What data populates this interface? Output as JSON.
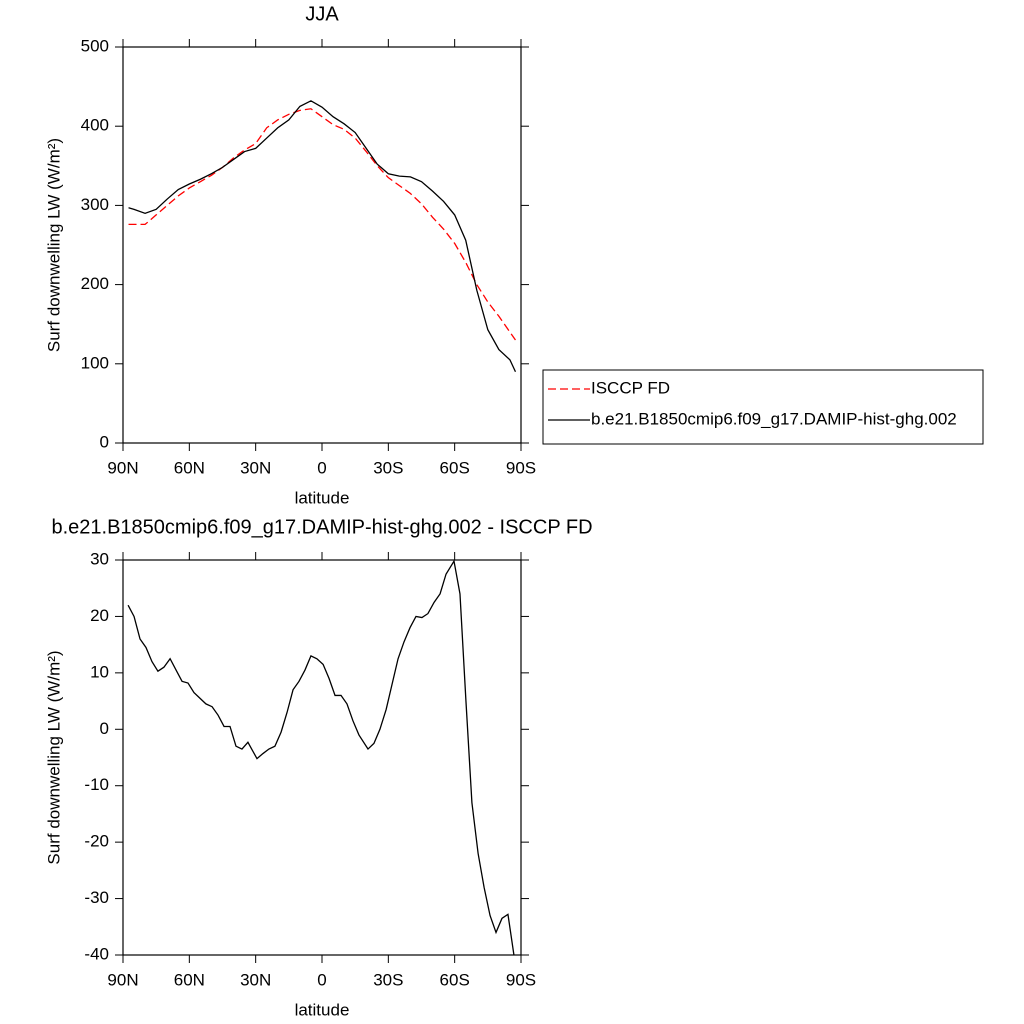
{
  "chart_data": [
    {
      "type": "line",
      "title": "JJA",
      "xlabel": "latitude",
      "ylabel": "Surf downwelling LW (W/m²)",
      "x": [
        87.5,
        85,
        80,
        75,
        70,
        65,
        60,
        55,
        50,
        45,
        40,
        35,
        30,
        25,
        20,
        15,
        10,
        5,
        0,
        -5,
        -10,
        -15,
        -20,
        -25,
        -30,
        -35,
        -40,
        -45,
        -50,
        -55,
        -60,
        -65,
        -70,
        -75,
        -80,
        -85,
        -87.5
      ],
      "series": [
        {
          "name": "ISCCP FD",
          "color": "#ff0000",
          "style": "dashed",
          "values": [
            276,
            276,
            276,
            288,
            300,
            312,
            322,
            330,
            338,
            348,
            360,
            370,
            378,
            398,
            408,
            415,
            420,
            422,
            412,
            402,
            396,
            385,
            368,
            350,
            335,
            325,
            315,
            302,
            285,
            270,
            252,
            228,
            200,
            178,
            160,
            140,
            130
          ]
        },
        {
          "name": "b.e21.B1850cmip6.f09_g17.DAMIP-hist-ghg.002",
          "color": "#000000",
          "style": "solid",
          "values": [
            297,
            295,
            290,
            295,
            308,
            320,
            327,
            333,
            340,
            348,
            358,
            368,
            372,
            385,
            398,
            408,
            425,
            432,
            424,
            412,
            403,
            392,
            372,
            352,
            340,
            337,
            336,
            330,
            318,
            305,
            288,
            256,
            193,
            143,
            118,
            105,
            90
          ]
        }
      ],
      "xlim": [
        90,
        -90
      ],
      "xticks": [
        {
          "value": 90,
          "label": "90N"
        },
        {
          "value": 60,
          "label": "60N"
        },
        {
          "value": 30,
          "label": "30N"
        },
        0,
        {
          "value": -30,
          "label": "30S"
        },
        {
          "value": -60,
          "label": "60S"
        },
        {
          "value": -90,
          "label": "90S"
        }
      ],
      "ylim": [
        0,
        500
      ],
      "yticks": [
        0,
        100,
        200,
        300,
        400,
        500
      ],
      "legend": "right"
    },
    {
      "type": "line",
      "title": "b.e21.B1850cmip6.f09_g17.DAMIP-hist-ghg.002 - ISCCP FD",
      "xlabel": "latitude",
      "ylabel": "Surf downwelling LW (W/m²)",
      "x": [
        87.7,
        85.0,
        82.3,
        79.6,
        76.9,
        74.2,
        71.5,
        68.7,
        66.0,
        63.3,
        60.6,
        57.9,
        55.2,
        52.5,
        49.7,
        47.0,
        44.3,
        41.6,
        38.9,
        36.2,
        33.5,
        29.4,
        26.7,
        24.0,
        21.3,
        18.5,
        15.8,
        13.1,
        10.4,
        7.7,
        5.0,
        2.3,
        -0.5,
        -3.2,
        -5.9,
        -8.6,
        -11.3,
        -14.0,
        -16.7,
        -20.8,
        -23.5,
        -26.2,
        -29.0,
        -31.7,
        -34.4,
        -37.1,
        -39.8,
        -42.5,
        -45.2,
        -47.9,
        -50.7,
        -53.4,
        -56.1,
        -59.7,
        -62.4,
        -65.1,
        -67.8,
        -70.6,
        -73.3,
        -76.0,
        -78.7,
        -81.4,
        -84.1,
        -86.8
      ],
      "values": [
        22,
        20,
        16,
        14.5,
        12,
        10.3,
        11,
        12.5,
        10.5,
        8.5,
        8.2,
        6.5,
        5.5,
        4.5,
        4,
        2.5,
        0.5,
        0.5,
        -3,
        -3.5,
        -2.3,
        -5.2,
        -4.3,
        -3.5,
        -3,
        -0.5,
        3,
        7,
        8.5,
        10.5,
        13,
        12.5,
        11.5,
        9,
        6,
        6,
        4.5,
        1.5,
        -1,
        -3.5,
        -2.5,
        0,
        3.5,
        8,
        12.5,
        15.5,
        18,
        20,
        19.8,
        20.5,
        22.5,
        24,
        27.5,
        29.8,
        24,
        5,
        -13,
        -22,
        -28,
        -33,
        -36,
        -33.5,
        -32.8,
        -40
      ],
      "color": "#000000",
      "style": "solid",
      "xlim": [
        90,
        -90
      ],
      "xticks": [
        {
          "value": 90,
          "label": "90N"
        },
        {
          "value": 60,
          "label": "60N"
        },
        {
          "value": 30,
          "label": "30N"
        },
        0,
        {
          "value": -30,
          "label": "30S"
        },
        {
          "value": -60,
          "label": "60S"
        },
        {
          "value": -90,
          "label": "90S"
        }
      ],
      "ylim": [
        -40,
        30
      ],
      "yticks": [
        -40,
        -30,
        -20,
        -10,
        0,
        10,
        20,
        30
      ]
    }
  ]
}
